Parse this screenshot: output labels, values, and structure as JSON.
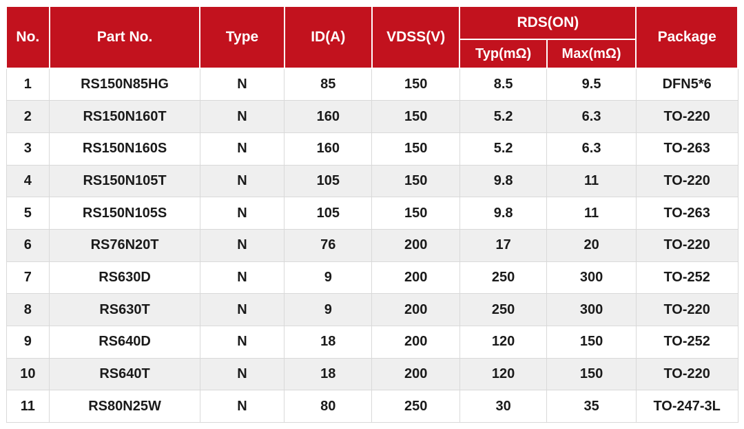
{
  "table": {
    "columns": [
      {
        "key": "no",
        "label": "No."
      },
      {
        "key": "part_no",
        "label": "Part No."
      },
      {
        "key": "type",
        "label": "Type"
      },
      {
        "key": "id_a",
        "label": "ID(A)"
      },
      {
        "key": "vdss_v",
        "label": "VDSS(V)"
      },
      {
        "key": "rds_on",
        "label": "RDS(ON)",
        "subcolumns": [
          {
            "key": "typ_mohm",
            "label": "Typ(mΩ)"
          },
          {
            "key": "max_mohm",
            "label": "Max(mΩ)"
          }
        ]
      },
      {
        "key": "package",
        "label": "Package"
      }
    ],
    "cell_names": [
      "no",
      "part-no",
      "type",
      "id-a",
      "vdss-v",
      "typ-mohm",
      "max-mohm",
      "package"
    ],
    "rows": [
      [
        "1",
        "RS150N85HG",
        "N",
        "85",
        "150",
        "8.5",
        "9.5",
        "DFN5*6"
      ],
      [
        "2",
        "RS150N160T",
        "N",
        "160",
        "150",
        "5.2",
        "6.3",
        "TO-220"
      ],
      [
        "3",
        "RS150N160S",
        "N",
        "160",
        "150",
        "5.2",
        "6.3",
        "TO-263"
      ],
      [
        "4",
        "RS150N105T",
        "N",
        "105",
        "150",
        "9.8",
        "11",
        "TO-220"
      ],
      [
        "5",
        "RS150N105S",
        "N",
        "105",
        "150",
        "9.8",
        "11",
        "TO-263"
      ],
      [
        "6",
        "RS76N20T",
        "N",
        "76",
        "200",
        "17",
        "20",
        "TO-220"
      ],
      [
        "7",
        "RS630D",
        "N",
        "9",
        "200",
        "250",
        "300",
        "TO-252"
      ],
      [
        "8",
        "RS630T",
        "N",
        "9",
        "200",
        "250",
        "300",
        "TO-220"
      ],
      [
        "9",
        "RS640D",
        "N",
        "18",
        "200",
        "120",
        "150",
        "TO-252"
      ],
      [
        "10",
        "RS640T",
        "N",
        "18",
        "200",
        "120",
        "150",
        "TO-220"
      ],
      [
        "11",
        "RS80N25W",
        "N",
        "80",
        "250",
        "30",
        "35",
        "TO-247-3L"
      ]
    ]
  },
  "colors": {
    "header_bg": "#c2121e",
    "header_text": "#ffffff",
    "row_bg": "#ffffff",
    "row_alt_bg": "#efefef",
    "border": "#d9d9d9",
    "text": "#1a1a1a"
  }
}
